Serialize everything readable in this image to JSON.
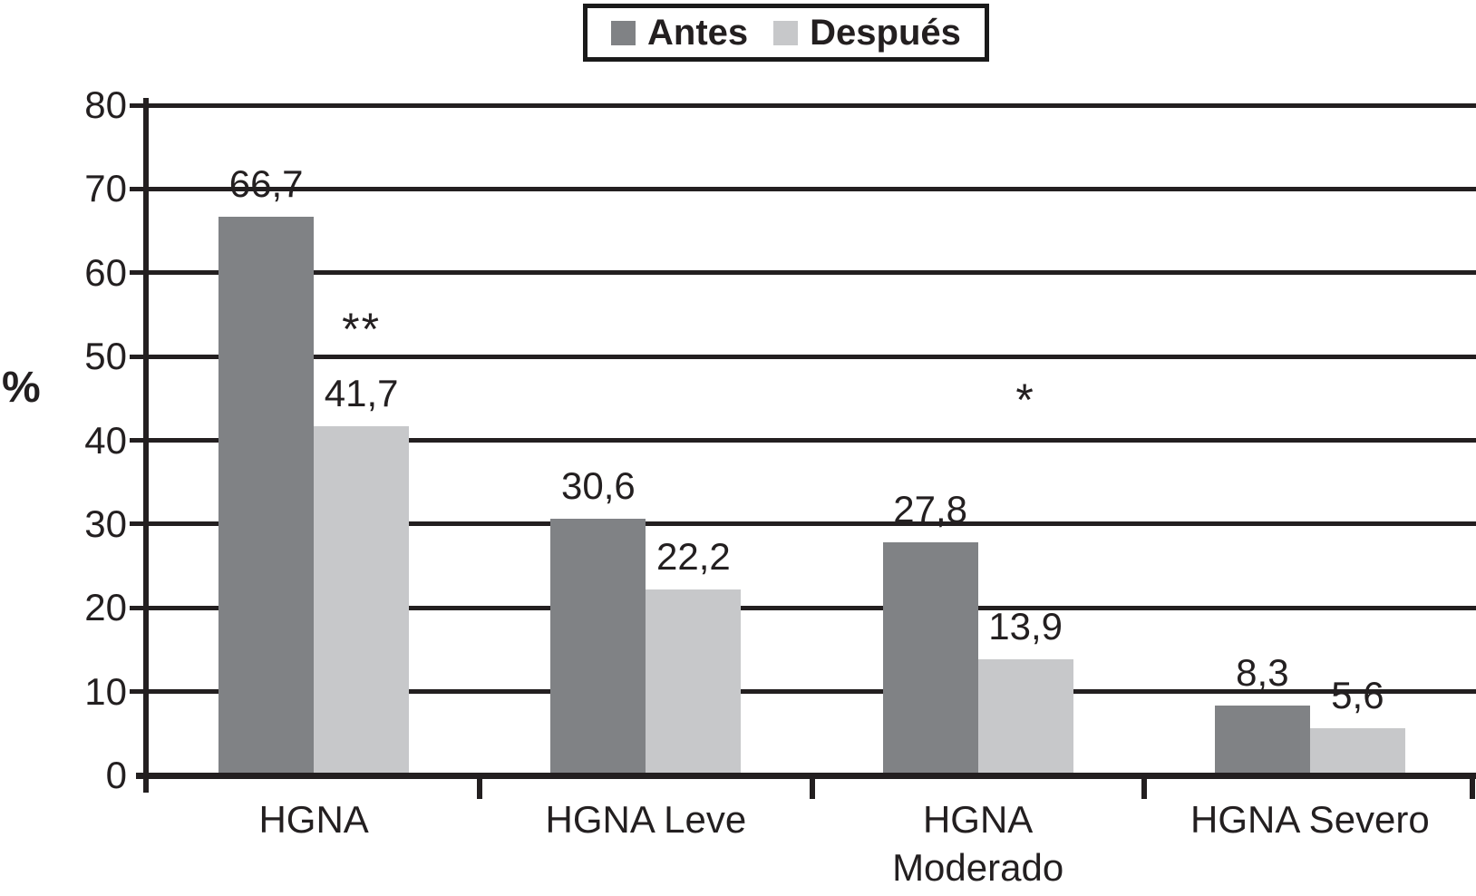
{
  "chart_data": {
    "type": "bar",
    "title": "",
    "xlabel": "",
    "ylabel": "%",
    "ylim": [
      0,
      80
    ],
    "yticks": [
      0,
      10,
      20,
      30,
      40,
      50,
      60,
      70,
      80
    ],
    "grid": "horizontal",
    "legend_position": "top-center",
    "decimal_separator": ",",
    "categories": [
      "HGNA",
      "HGNA Leve",
      "HGNA\nModerado",
      "HGNA Severo"
    ],
    "series": [
      {
        "name": "Antes",
        "color": "#808285",
        "values": [
          66.7,
          30.6,
          27.8,
          8.3
        ],
        "value_labels": [
          "66,7",
          "30,6",
          "27,8",
          "8,3"
        ]
      },
      {
        "name": "Después",
        "color": "#c7c8ca",
        "values": [
          41.7,
          22.2,
          13.9,
          5.6
        ],
        "value_labels": [
          "41,7",
          "22,2",
          "13,9",
          "5,6"
        ]
      }
    ],
    "annotations": [
      {
        "text": "**",
        "category_index": 0,
        "series_index": 1,
        "at_value": 56
      },
      {
        "text": "*",
        "category_index": 2,
        "series_index": 1,
        "at_value": 47.5
      }
    ],
    "axis_color": "#231f20",
    "background_color": "#ffffff"
  }
}
